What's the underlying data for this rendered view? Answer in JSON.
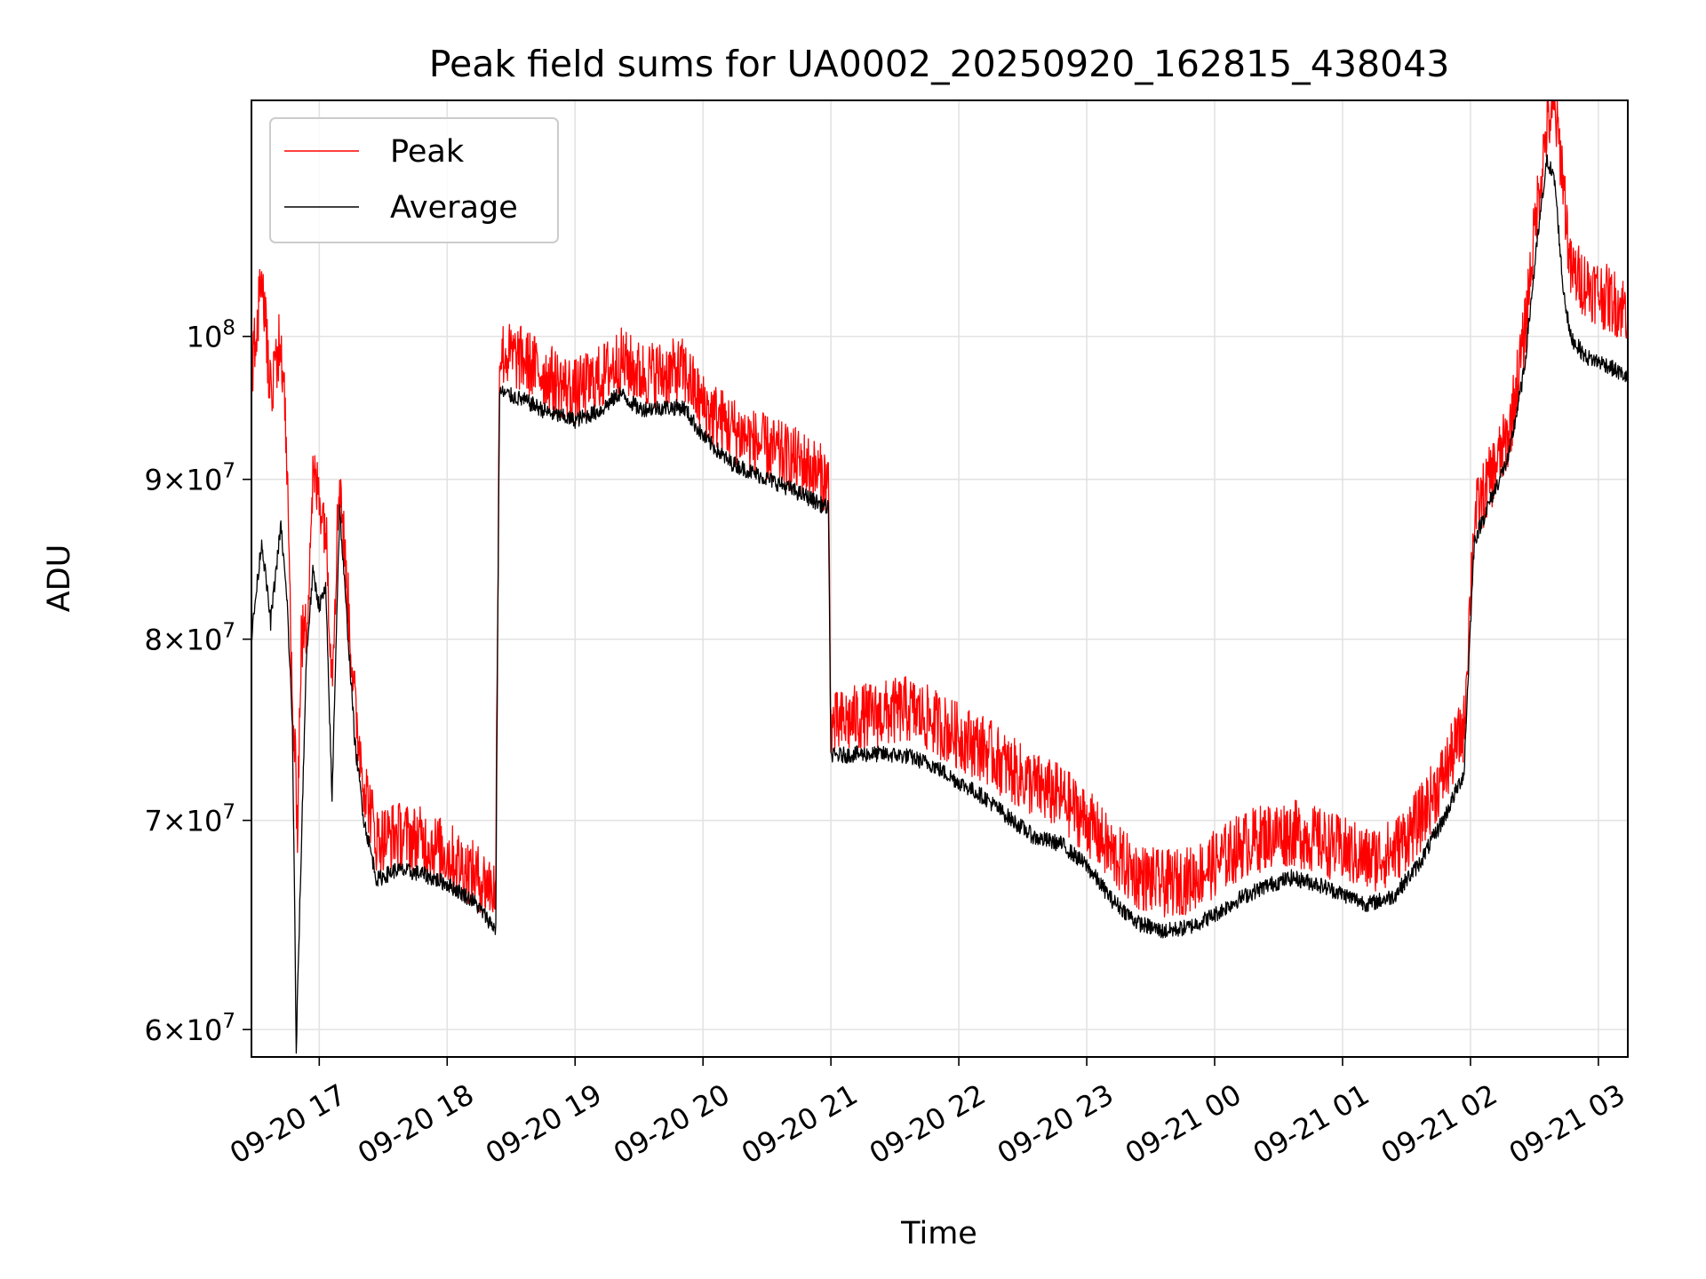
{
  "chart_data": {
    "type": "line",
    "title": "Peak field sums for UA0002_20250920_162815_438043",
    "xlabel": "Time",
    "ylabel": "ADU",
    "yscale": "log",
    "ylim": [
      58800000,
      119000000
    ],
    "xlim": [
      16.47,
      27.23
    ],
    "grid": true,
    "legend": {
      "position": "top-left",
      "entries": [
        "Peak",
        "Average"
      ]
    },
    "x_ticks": [
      {
        "value": 17,
        "label": "09-20 17"
      },
      {
        "value": 18,
        "label": "09-20 18"
      },
      {
        "value": 19,
        "label": "09-20 19"
      },
      {
        "value": 20,
        "label": "09-20 20"
      },
      {
        "value": 21,
        "label": "09-20 21"
      },
      {
        "value": 22,
        "label": "09-20 22"
      },
      {
        "value": 23,
        "label": "09-20 23"
      },
      {
        "value": 24,
        "label": "09-21 00"
      },
      {
        "value": 25,
        "label": "09-21 01"
      },
      {
        "value": 26,
        "label": "09-21 02"
      },
      {
        "value": 27,
        "label": "09-21 03"
      }
    ],
    "y_ticks": [
      {
        "value": 60000000,
        "mantissa": "6",
        "exponent": "7"
      },
      {
        "value": 70000000,
        "mantissa": "7",
        "exponent": "7"
      },
      {
        "value": 80000000,
        "mantissa": "8",
        "exponent": "7"
      },
      {
        "value": 90000000,
        "mantissa": "9",
        "exponent": "7"
      },
      {
        "value": 100000000,
        "mantissa": "",
        "exponent": "8"
      }
    ],
    "series": [
      {
        "name": "Peak",
        "color": "#ff0000",
        "noise": 0.025,
        "points": [
          [
            16.47,
            97500000
          ],
          [
            16.55,
            104000000
          ],
          [
            16.62,
            96000000
          ],
          [
            16.7,
            100000000
          ],
          [
            16.75,
            91000000
          ],
          [
            16.78,
            78000000
          ],
          [
            16.83,
            70000000
          ],
          [
            16.86,
            80000000
          ],
          [
            16.9,
            80500000
          ],
          [
            16.95,
            90000000
          ],
          [
            17.0,
            89000000
          ],
          [
            17.05,
            87000000
          ],
          [
            17.1,
            78000000
          ],
          [
            17.16,
            90500000
          ],
          [
            17.2,
            85000000
          ],
          [
            17.28,
            76000000
          ],
          [
            17.35,
            72000000
          ],
          [
            17.45,
            69000000
          ],
          [
            17.6,
            69300000
          ],
          [
            17.8,
            69000000
          ],
          [
            18.0,
            68300000
          ],
          [
            18.2,
            67300000
          ],
          [
            18.38,
            66500000
          ],
          [
            18.41,
            98800000
          ],
          [
            18.6,
            98300000
          ],
          [
            18.8,
            97000000
          ],
          [
            19.0,
            96000000
          ],
          [
            19.2,
            97000000
          ],
          [
            19.35,
            98300000
          ],
          [
            19.5,
            97300000
          ],
          [
            19.7,
            97300000
          ],
          [
            19.85,
            97500000
          ],
          [
            20.0,
            95000000
          ],
          [
            20.2,
            93600000
          ],
          [
            20.4,
            92500000
          ],
          [
            20.6,
            91700000
          ],
          [
            20.8,
            91000000
          ],
          [
            20.98,
            89800000
          ],
          [
            21.0,
            75000000
          ],
          [
            21.2,
            75500000
          ],
          [
            21.4,
            75700000
          ],
          [
            21.6,
            76000000
          ],
          [
            21.8,
            75300000
          ],
          [
            22.0,
            74500000
          ],
          [
            22.2,
            73800000
          ],
          [
            22.4,
            72700000
          ],
          [
            22.6,
            71800000
          ],
          [
            22.8,
            71200000
          ],
          [
            23.0,
            70000000
          ],
          [
            23.2,
            68300000
          ],
          [
            23.4,
            67200000
          ],
          [
            23.6,
            66800000
          ],
          [
            23.8,
            67000000
          ],
          [
            24.0,
            67800000
          ],
          [
            24.2,
            68700000
          ],
          [
            24.4,
            69200000
          ],
          [
            24.6,
            69400000
          ],
          [
            24.8,
            69000000
          ],
          [
            25.0,
            68500000
          ],
          [
            25.2,
            68000000
          ],
          [
            25.4,
            68400000
          ],
          [
            25.6,
            70000000
          ],
          [
            25.8,
            72500000
          ],
          [
            25.95,
            75000000
          ],
          [
            26.03,
            87500000
          ],
          [
            26.15,
            90000000
          ],
          [
            26.3,
            93000000
          ],
          [
            26.42,
            100000000
          ],
          [
            26.52,
            110000000
          ],
          [
            26.6,
            117000000
          ],
          [
            26.66,
            118000000
          ],
          [
            26.72,
            113000000
          ],
          [
            26.78,
            105000000
          ],
          [
            26.9,
            104000000
          ],
          [
            27.05,
            103000000
          ],
          [
            27.23,
            102000000
          ]
        ]
      },
      {
        "name": "Average",
        "color": "#000000",
        "noise": 0.006,
        "points": [
          [
            16.47,
            80000000
          ],
          [
            16.55,
            86000000
          ],
          [
            16.62,
            81000000
          ],
          [
            16.7,
            87000000
          ],
          [
            16.75,
            82000000
          ],
          [
            16.79,
            75000000
          ],
          [
            16.82,
            59000000
          ],
          [
            16.86,
            68500000
          ],
          [
            16.9,
            79000000
          ],
          [
            16.95,
            84000000
          ],
          [
            17.0,
            82000000
          ],
          [
            17.05,
            83000000
          ],
          [
            17.1,
            71000000
          ],
          [
            17.16,
            88000000
          ],
          [
            17.2,
            83000000
          ],
          [
            17.28,
            74000000
          ],
          [
            17.35,
            70000000
          ],
          [
            17.45,
            67000000
          ],
          [
            17.6,
            67500000
          ],
          [
            17.8,
            67300000
          ],
          [
            18.0,
            66800000
          ],
          [
            18.2,
            66000000
          ],
          [
            18.38,
            64600000
          ],
          [
            18.41,
            96000000
          ],
          [
            18.6,
            95400000
          ],
          [
            18.8,
            94500000
          ],
          [
            19.0,
            94000000
          ],
          [
            19.2,
            94700000
          ],
          [
            19.35,
            95900000
          ],
          [
            19.5,
            94800000
          ],
          [
            19.7,
            94900000
          ],
          [
            19.85,
            94900000
          ],
          [
            20.0,
            92900000
          ],
          [
            20.2,
            91200000
          ],
          [
            20.4,
            90400000
          ],
          [
            20.6,
            89700000
          ],
          [
            20.8,
            88900000
          ],
          [
            20.98,
            88100000
          ],
          [
            21.0,
            73400000
          ],
          [
            21.2,
            73500000
          ],
          [
            21.4,
            73500000
          ],
          [
            21.6,
            73400000
          ],
          [
            21.8,
            72900000
          ],
          [
            22.0,
            72000000
          ],
          [
            22.2,
            71200000
          ],
          [
            22.4,
            70100000
          ],
          [
            22.6,
            69100000
          ],
          [
            22.8,
            68800000
          ],
          [
            23.0,
            67700000
          ],
          [
            23.2,
            66000000
          ],
          [
            23.4,
            64900000
          ],
          [
            23.6,
            64500000
          ],
          [
            23.8,
            64700000
          ],
          [
            24.0,
            65300000
          ],
          [
            24.2,
            66100000
          ],
          [
            24.4,
            66700000
          ],
          [
            24.6,
            67100000
          ],
          [
            24.8,
            66800000
          ],
          [
            25.0,
            66300000
          ],
          [
            25.2,
            65800000
          ],
          [
            25.4,
            66200000
          ],
          [
            25.6,
            67800000
          ],
          [
            25.8,
            70200000
          ],
          [
            25.95,
            72500000
          ],
          [
            26.03,
            86000000
          ],
          [
            26.15,
            88500000
          ],
          [
            26.3,
            91500000
          ],
          [
            26.42,
            97500000
          ],
          [
            26.52,
            107000000
          ],
          [
            26.6,
            114000000
          ],
          [
            26.66,
            112000000
          ],
          [
            26.72,
            104000000
          ],
          [
            26.78,
            100000000
          ],
          [
            26.9,
            98500000
          ],
          [
            27.05,
            98000000
          ],
          [
            27.23,
            97000000
          ]
        ]
      }
    ]
  }
}
